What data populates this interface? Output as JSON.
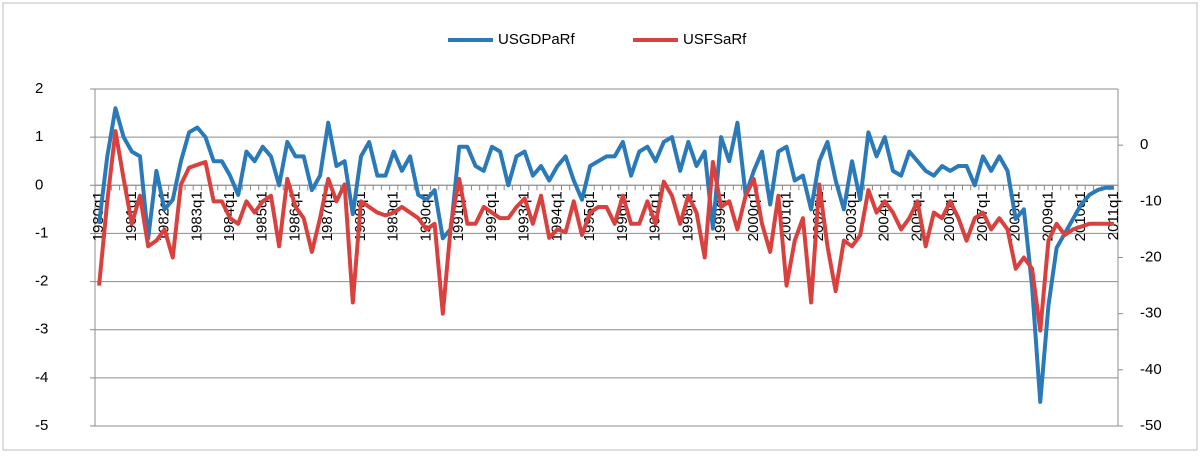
{
  "chart_data": {
    "type": "line",
    "categories": [
      "1980q1",
      null,
      null,
      null,
      "1981q1",
      null,
      null,
      null,
      "1982q1",
      null,
      null,
      null,
      "1983q1",
      null,
      null,
      null,
      "1984q1",
      null,
      null,
      null,
      "1985q1",
      null,
      null,
      null,
      "1986q1",
      null,
      null,
      null,
      "1987q1",
      null,
      null,
      null,
      "1988q1",
      null,
      null,
      null,
      "1989q1",
      null,
      null,
      null,
      "1990q1",
      null,
      null,
      null,
      "1991q1",
      null,
      null,
      null,
      "1992q1",
      null,
      null,
      null,
      "1993q1",
      null,
      null,
      null,
      "1994q1",
      null,
      null,
      null,
      "1995q1",
      null,
      null,
      null,
      "1996q1",
      null,
      null,
      null,
      "1997q1",
      null,
      null,
      null,
      "1998q1",
      null,
      null,
      null,
      "1999q1",
      null,
      null,
      null,
      "2000q1",
      null,
      null,
      null,
      "2001q1",
      null,
      null,
      null,
      "2002q1",
      null,
      null,
      null,
      "2003q1",
      null,
      null,
      null,
      "2004q1",
      null,
      null,
      null,
      "2005q1",
      null,
      null,
      null,
      "2006q1",
      null,
      null,
      null,
      "2007q1",
      null,
      null,
      null,
      "2008q1",
      null,
      null,
      null,
      "2009q1",
      null,
      null,
      null,
      "2010q1",
      null,
      null,
      null,
      "2011q1"
    ],
    "series": [
      {
        "name": "USGDPaRf",
        "color": "#2a7ab9",
        "values": [
          -0.8,
          0.6,
          1.6,
          1.0,
          0.7,
          0.6,
          -1.1,
          0.3,
          -0.5,
          -0.3,
          0.5,
          1.1,
          1.2,
          1.0,
          0.5,
          0.5,
          0.2,
          -0.2,
          0.7,
          0.5,
          0.8,
          0.6,
          0.0,
          0.9,
          0.6,
          0.6,
          -0.1,
          0.2,
          1.3,
          0.4,
          0.5,
          -0.6,
          0.6,
          0.9,
          0.2,
          0.2,
          0.7,
          0.3,
          0.6,
          -0.2,
          -0.3,
          -0.1,
          -1.1,
          -0.9,
          0.8,
          0.8,
          0.4,
          0.3,
          0.8,
          0.7,
          0.0,
          0.6,
          0.7,
          0.2,
          0.4,
          0.1,
          0.4,
          0.6,
          0.1,
          -0.3,
          0.4,
          0.5,
          0.6,
          0.6,
          0.9,
          0.2,
          0.7,
          0.8,
          0.5,
          0.9,
          1.0,
          0.3,
          0.9,
          0.4,
          0.7,
          -0.9,
          1.0,
          0.5,
          1.3,
          -0.2,
          0.3,
          0.7,
          -0.4,
          0.7,
          0.8,
          0.1,
          0.2,
          -0.5,
          0.5,
          0.9,
          0.1,
          -0.5,
          0.5,
          -0.3,
          1.1,
          0.6,
          1.0,
          0.3,
          0.2,
          0.7,
          0.5,
          0.3,
          0.2,
          0.4,
          0.3,
          0.4,
          0.4,
          0.0,
          0.6,
          0.3,
          0.6,
          0.3,
          -0.7,
          -0.5,
          -2.1,
          -4.5,
          -2.5,
          -1.3,
          -1.0,
          -0.7,
          -0.4,
          -0.2,
          -0.1,
          -0.05,
          -0.05
        ]
      },
      {
        "name": "USFSaRf",
        "color": "#d9413e",
        "axis": "y2",
        "values": [
          -25,
          -10,
          2.5,
          -6,
          -14,
          -9,
          -18,
          -17,
          -15,
          -20,
          -7,
          -4,
          -3.5,
          -3,
          -10,
          -10,
          -13,
          -14,
          -10,
          -12,
          -10,
          -9,
          -18,
          -6,
          -11,
          -13,
          -19,
          -13,
          -6,
          -10,
          -7,
          -28,
          -10,
          -11,
          -12,
          -12.5,
          -12,
          -11,
          -12,
          -13,
          -15,
          -14,
          -30,
          -14,
          -6,
          -14,
          -14,
          -11,
          -12,
          -13,
          -13,
          -11,
          -9.5,
          -14,
          -9,
          -16.5,
          -15,
          -15.5,
          -10,
          -16,
          -12,
          -11,
          -11,
          -14,
          -9,
          -14,
          -14,
          -10,
          -14,
          -6.5,
          -9,
          -14,
          -9,
          -12,
          -20,
          -3,
          -11,
          -10,
          -15,
          -9,
          -6,
          -14,
          -19,
          -9,
          -25,
          -17,
          -13,
          -28,
          -7,
          -18,
          -26,
          -17,
          -18,
          -16,
          -8,
          -12,
          -10,
          -12,
          -15,
          -13,
          -10,
          -18,
          -12,
          -13,
          -10,
          -13,
          -17,
          -13,
          -12,
          -15,
          -13,
          -15,
          -22,
          -20,
          -22,
          -33,
          -17,
          -14,
          -16,
          -15,
          -14.5,
          -14,
          -14,
          -14,
          -14
        ]
      }
    ],
    "ylim": [
      -5,
      2
    ],
    "yticks": [
      -5,
      -4,
      -3,
      -2,
      -1,
      0,
      1,
      2
    ],
    "y2lim": [
      -50,
      10
    ],
    "y2ticks": [
      -50,
      -40,
      -30,
      -20,
      -10,
      0
    ],
    "grid": true,
    "legend": "top"
  }
}
